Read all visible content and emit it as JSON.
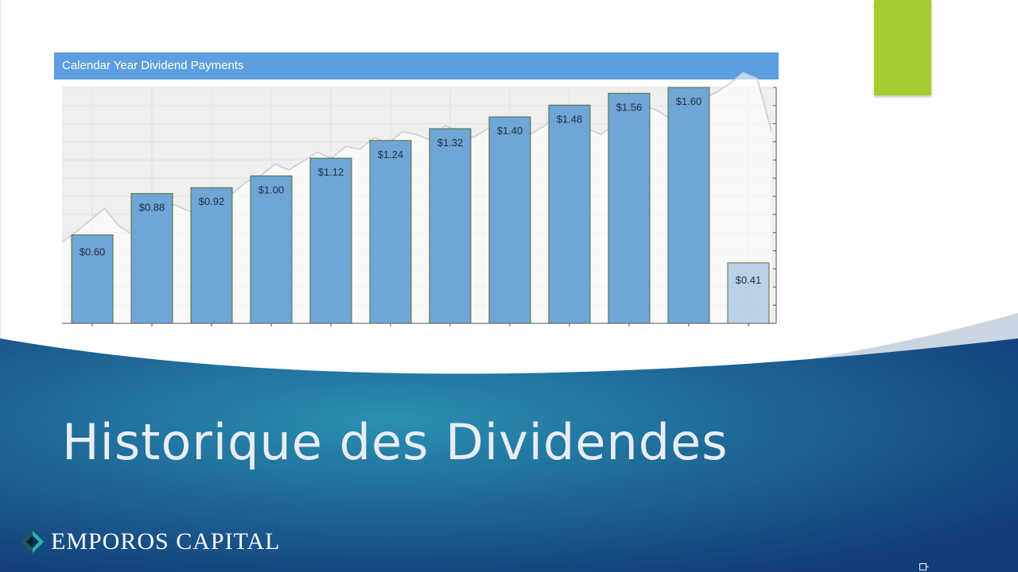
{
  "colors": {
    "header_blue": "#5b9fe0",
    "bar_blue": "#6ba2d6",
    "bar_border": "#4a6a2a",
    "partial_bar": "#b8cfe8",
    "accent_green": "#a6cc2e",
    "slide_blue_dark": "#123d7a",
    "slide_blue_light": "#2a8fb2"
  },
  "slide": {
    "title": "Historique des Dividendes",
    "brand_name": "EMPOROS CAPITAL"
  },
  "chart_data": {
    "type": "bar",
    "title": "Calendar Year Dividend Payments",
    "xlabel": "",
    "ylabel": "",
    "ylim": [
      0,
      1.6
    ],
    "grid": true,
    "categories": [
      "",
      "",
      "",
      "",
      "",
      "",
      "",
      "",
      "",
      "",
      "",
      ""
    ],
    "values": [
      0.6,
      0.88,
      0.92,
      1.0,
      1.12,
      1.24,
      1.32,
      1.4,
      1.48,
      1.56,
      1.6,
      0.41
    ],
    "labels": [
      "$0.60",
      "$0.88",
      "$0.92",
      "$1.00",
      "$1.12",
      "$1.24",
      "$1.32",
      "$1.40",
      "$1.48",
      "$1.56",
      "$1.60",
      "$0.41"
    ],
    "partial_last_bar": true,
    "background_price_line": [
      0.55,
      0.62,
      0.7,
      0.78,
      0.66,
      0.6,
      0.74,
      0.82,
      0.8,
      0.76,
      0.84,
      0.92,
      0.88,
      0.96,
      1.0,
      1.08,
      1.04,
      1.1,
      1.16,
      1.12,
      1.2,
      1.18,
      1.26,
      1.22,
      1.3,
      1.28,
      1.24,
      1.34,
      1.3,
      1.26,
      1.32,
      1.4,
      1.36,
      1.28,
      1.34,
      1.42,
      1.38,
      1.32,
      1.28,
      1.36,
      1.4,
      1.48,
      1.44,
      1.38,
      1.46,
      1.52,
      1.56,
      1.62,
      1.7,
      1.66,
      1.3
    ]
  }
}
